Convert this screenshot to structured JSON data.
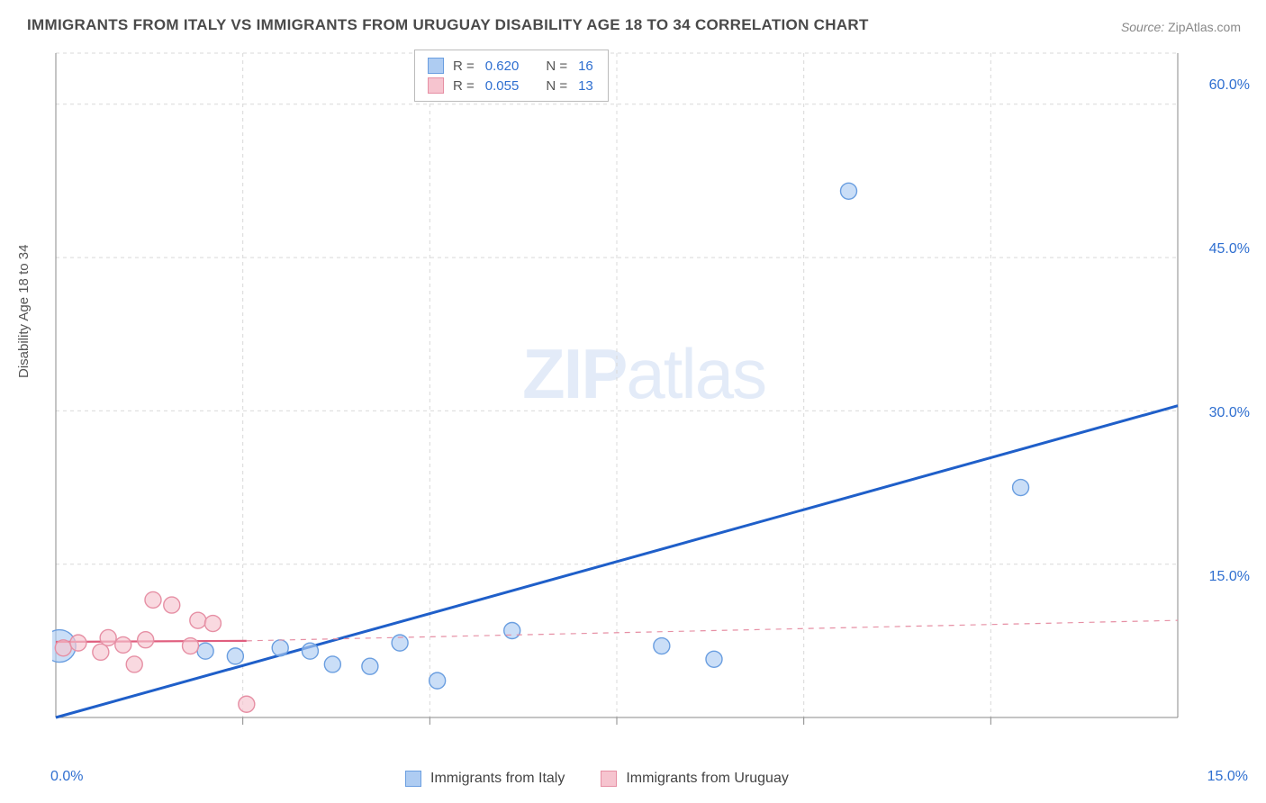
{
  "title": "IMMIGRANTS FROM ITALY VS IMMIGRANTS FROM URUGUAY DISABILITY AGE 18 TO 34 CORRELATION CHART",
  "source_label": "Source:",
  "source_value": "ZipAtlas.com",
  "y_axis_label": "Disability Age 18 to 34",
  "watermark_zip": "ZIP",
  "watermark_rest": "atlas",
  "legend_top": {
    "rows": [
      {
        "color_fill": "#aeccf2",
        "color_border": "#6a9ee0",
        "r_label": "R =",
        "r_value": "0.620",
        "n_label": "N =",
        "n_value": "16"
      },
      {
        "color_fill": "#f6c4cf",
        "color_border": "#e68fa4",
        "r_label": "R =",
        "r_value": "0.055",
        "n_label": "N =",
        "n_value": "13"
      }
    ]
  },
  "legend_bottom": {
    "items": [
      {
        "color_fill": "#aeccf2",
        "color_border": "#6a9ee0",
        "label": "Immigrants from Italy"
      },
      {
        "color_fill": "#f6c4cf",
        "color_border": "#e68fa4",
        "label": "Immigrants from Uruguay"
      }
    ]
  },
  "chart": {
    "type": "scatter",
    "background_color": "#ffffff",
    "grid_color": "#d9d9d9",
    "axis_color": "#888888",
    "xlim": [
      0,
      15
    ],
    "ylim": [
      0,
      65
    ],
    "y_ticks": [
      15,
      30,
      45,
      60
    ],
    "x_ticks": [
      0,
      15
    ],
    "x_tick_labels": [
      "0.0%",
      "15.0%"
    ],
    "y_tick_labels": [
      "15.0%",
      "30.0%",
      "45.0%",
      "60.0%"
    ],
    "x_grid_lines": [
      2.5,
      5.0,
      7.5,
      10.0,
      12.5
    ],
    "series": [
      {
        "name": "italy",
        "marker_fill": "#aeccf2",
        "marker_stroke": "#6a9ee0",
        "marker_r": 9,
        "trend_color": "#1f5fc9",
        "trend_width": 3,
        "trend_dash": "none",
        "trend": {
          "x1": 0,
          "y1": 0,
          "x2": 15,
          "y2": 30.5
        },
        "points": [
          {
            "x": 0.05,
            "y": 7.0,
            "r": 18
          },
          {
            "x": 2.0,
            "y": 6.5
          },
          {
            "x": 2.4,
            "y": 6.0
          },
          {
            "x": 3.0,
            "y": 6.8
          },
          {
            "x": 3.4,
            "y": 6.5
          },
          {
            "x": 3.7,
            "y": 5.2
          },
          {
            "x": 4.2,
            "y": 5.0
          },
          {
            "x": 4.6,
            "y": 7.3
          },
          {
            "x": 5.1,
            "y": 3.6
          },
          {
            "x": 6.1,
            "y": 8.5
          },
          {
            "x": 8.1,
            "y": 7.0
          },
          {
            "x": 8.8,
            "y": 5.7
          },
          {
            "x": 10.6,
            "y": 51.5
          },
          {
            "x": 12.9,
            "y": 22.5
          }
        ]
      },
      {
        "name": "uruguay",
        "marker_fill": "#f6c4cf",
        "marker_stroke": "#e68fa4",
        "marker_r": 9,
        "trend_solid_color": "#e05e7e",
        "trend_solid_width": 2.2,
        "trend_solid": {
          "x1": 0,
          "y1": 7.4,
          "x2": 2.55,
          "y2": 7.5
        },
        "trend_dash_color": "#e68fa4",
        "trend_dash_width": 1.2,
        "trend_dash": {
          "x1": 2.55,
          "y1": 7.5,
          "x2": 15,
          "y2": 9.5
        },
        "points": [
          {
            "x": 0.1,
            "y": 6.8
          },
          {
            "x": 0.3,
            "y": 7.3
          },
          {
            "x": 0.6,
            "y": 6.4
          },
          {
            "x": 0.7,
            "y": 7.8
          },
          {
            "x": 0.9,
            "y": 7.1
          },
          {
            "x": 1.05,
            "y": 5.2
          },
          {
            "x": 1.2,
            "y": 7.6
          },
          {
            "x": 1.3,
            "y": 11.5
          },
          {
            "x": 1.55,
            "y": 11.0
          },
          {
            "x": 1.8,
            "y": 7.0
          },
          {
            "x": 1.9,
            "y": 9.5
          },
          {
            "x": 2.1,
            "y": 9.2
          },
          {
            "x": 2.55,
            "y": 1.3
          }
        ]
      }
    ]
  }
}
